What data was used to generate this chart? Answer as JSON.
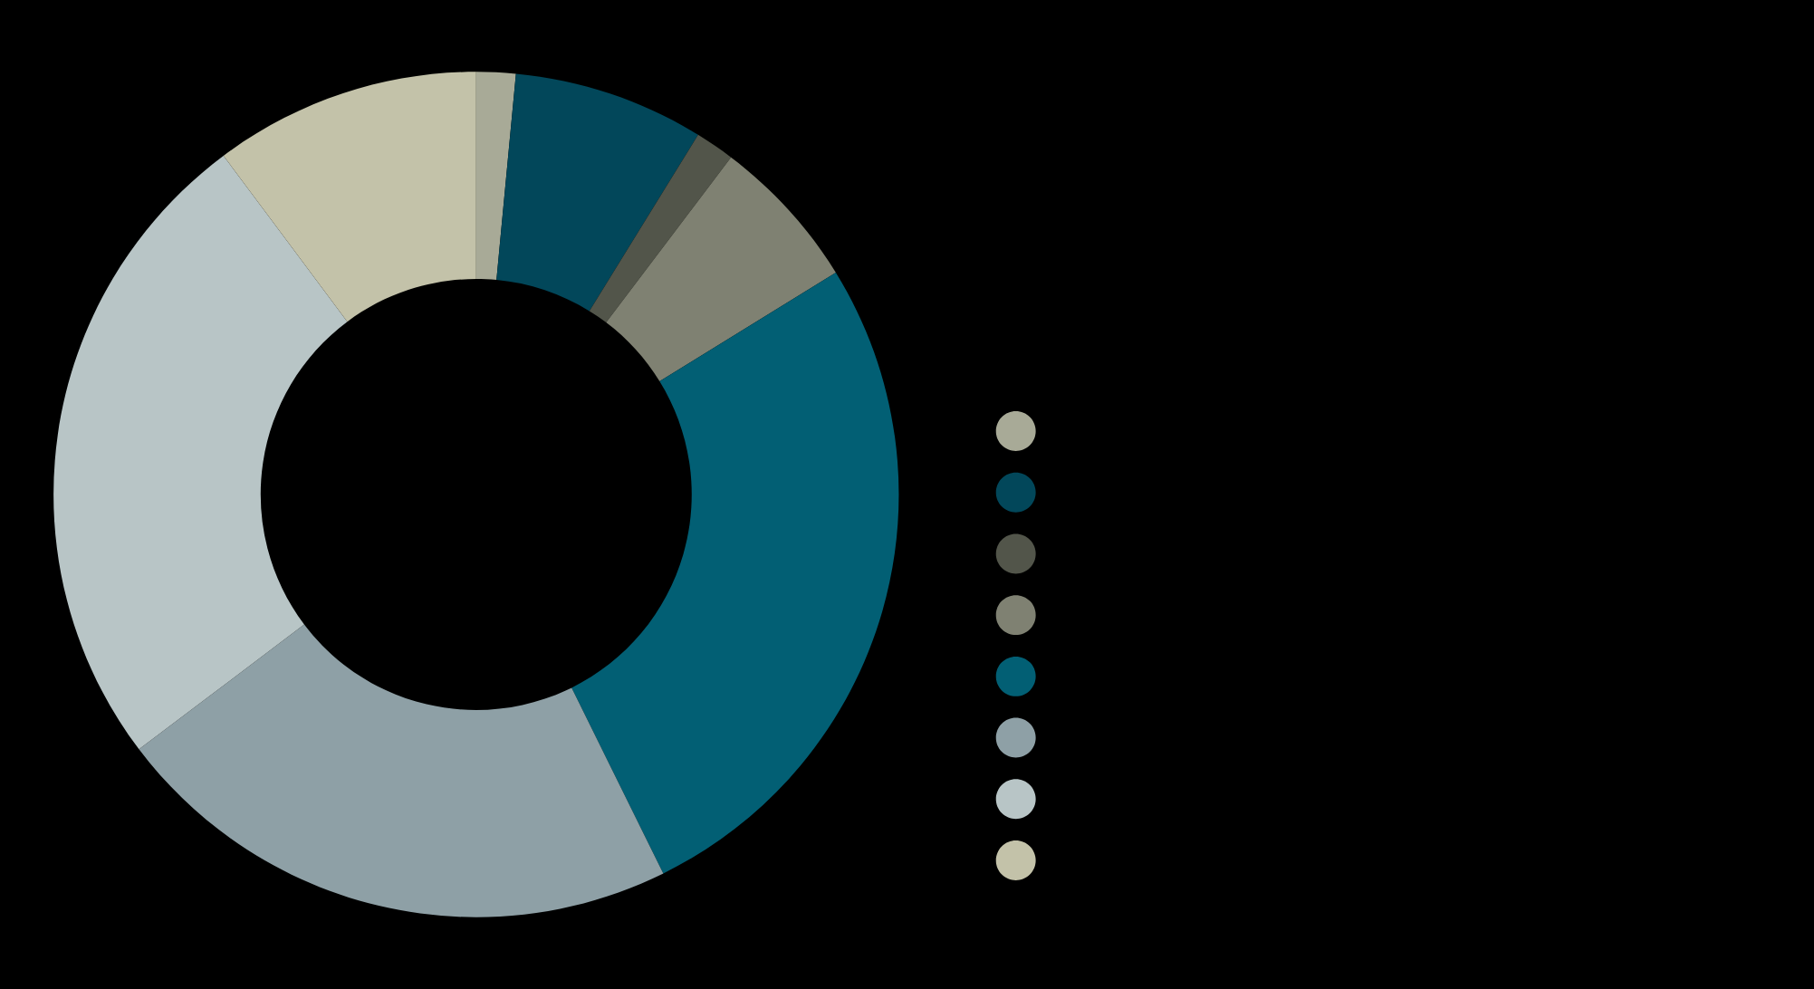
{
  "chart_data": {
    "type": "donut",
    "categories": [
      null,
      null,
      null,
      null,
      null,
      null,
      null,
      null
    ],
    "values": [
      1.5,
      7.3,
      1.5,
      5.9,
      26.5,
      22.0,
      25.1,
      10.2
    ],
    "colors": [
      "#a8aa97",
      "#02475a",
      "#52554a",
      "#7f8172",
      "#025f74",
      "#8ea0a6",
      "#b8c5c6",
      "#c3c2a9"
    ]
  }
}
